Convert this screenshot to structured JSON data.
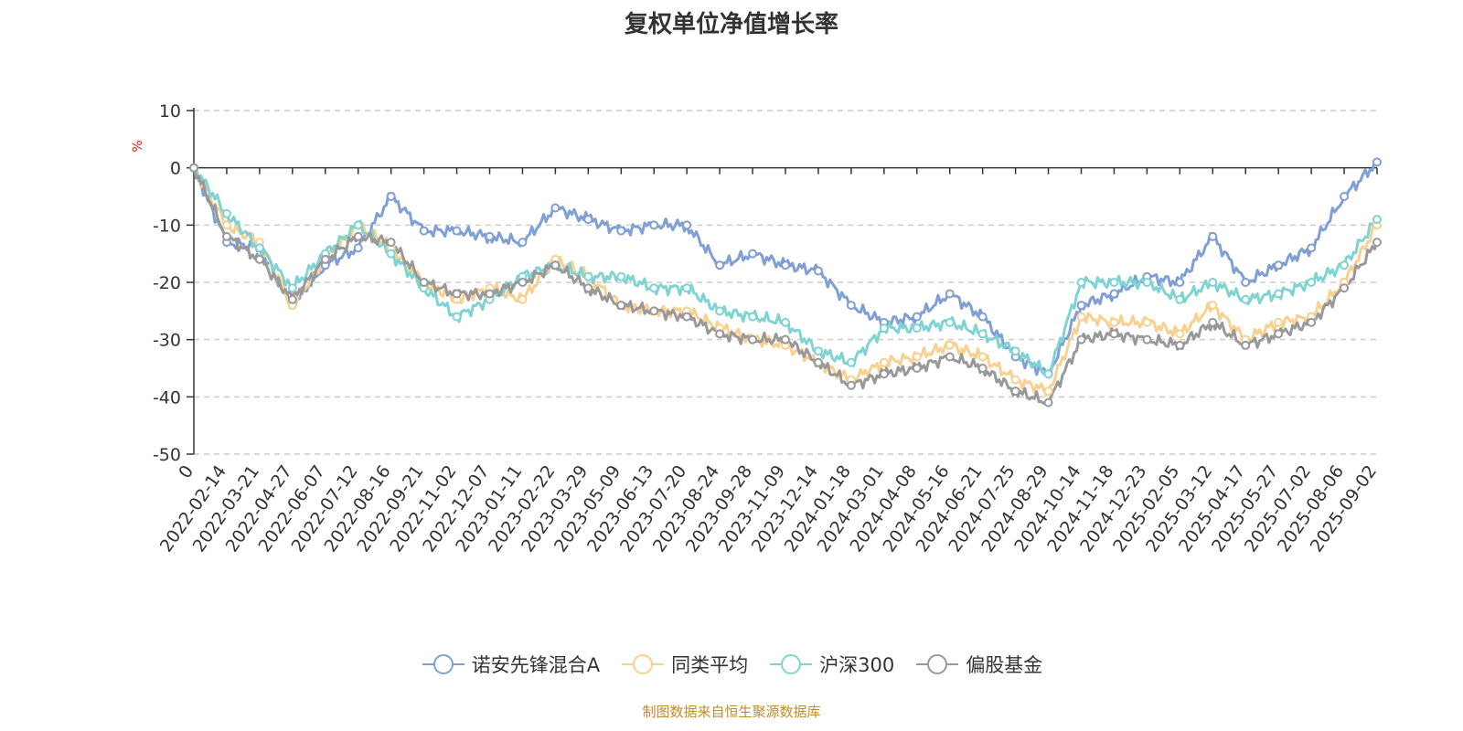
{
  "chart_data": {
    "type": "line",
    "title": "复权单位净值增长率",
    "ylabel": "%",
    "ylim": [
      -50,
      10
    ],
    "yticks": [
      10,
      0,
      -10,
      -20,
      -30,
      -40,
      -50
    ],
    "grid": true,
    "legend_position": "bottom",
    "x_tick_labels": [
      "0",
      "2022-02-14",
      "2022-03-21",
      "2022-04-27",
      "2022-06-07",
      "2022-07-12",
      "2022-08-16",
      "2022-09-21",
      "2022-11-02",
      "2022-12-07",
      "2023-01-11",
      "2023-02-22",
      "2023-03-29",
      "2023-05-09",
      "2023-06-13",
      "2023-07-20",
      "2023-08-24",
      "2023-09-28",
      "2023-11-09",
      "2023-12-14",
      "2024-01-18",
      "2024-03-01",
      "2024-04-08",
      "2024-05-16",
      "2024-06-21",
      "2024-07-25",
      "2024-08-29",
      "2024-10-14",
      "2024-11-18",
      "2024-12-23",
      "2025-02-05",
      "2025-03-12",
      "2025-04-17",
      "2025-05-27",
      "2025-07-02",
      "2025-08-06",
      "2025-09-02"
    ],
    "x": [
      "0",
      "2022-02-14",
      "2022-03-21",
      "2022-04-27",
      "2022-06-07",
      "2022-07-12",
      "2022-08-16",
      "2022-09-21",
      "2022-11-02",
      "2022-12-07",
      "2023-01-11",
      "2023-02-22",
      "2023-03-29",
      "2023-05-09",
      "2023-06-13",
      "2023-07-20",
      "2023-08-24",
      "2023-09-28",
      "2023-11-09",
      "2023-12-14",
      "2024-01-18",
      "2024-03-01",
      "2024-04-08",
      "2024-05-16",
      "2024-06-21",
      "2024-07-25",
      "2024-08-29",
      "2024-10-14",
      "2024-11-18",
      "2024-12-23",
      "2025-02-05",
      "2025-03-12",
      "2025-04-17",
      "2025-05-27",
      "2025-07-02",
      "2025-08-06",
      "2025-09-02"
    ],
    "series": [
      {
        "name": "诺安先锋混合A",
        "color": "#7f9fd5",
        "values": [
          0,
          -13,
          -14,
          -24,
          -17,
          -14,
          -5,
          -11,
          -11,
          -12,
          -13,
          -7,
          -9,
          -11,
          -10,
          -10,
          -17,
          -15,
          -17,
          -18,
          -24,
          -27,
          -26,
          -22,
          -26,
          -33,
          -36,
          -24,
          -22,
          -19,
          -20,
          -12,
          -20,
          -17,
          -14,
          -5,
          1
        ]
      },
      {
        "name": "同类平均",
        "color": "#f9d08f",
        "values": [
          0,
          -10,
          -13,
          -24,
          -16,
          -10,
          -14,
          -20,
          -23,
          -21,
          -23,
          -16,
          -19,
          -24,
          -25,
          -25,
          -28,
          -30,
          -31,
          -34,
          -37,
          -34,
          -33,
          -31,
          -33,
          -37,
          -39,
          -26,
          -27,
          -27,
          -29,
          -24,
          -30,
          -27,
          -26,
          -20,
          -10
        ]
      },
      {
        "name": "沪深300",
        "color": "#7fd3d3",
        "values": [
          0,
          -8,
          -14,
          -21,
          -15,
          -10,
          -15,
          -21,
          -26,
          -23,
          -19,
          -17,
          -19,
          -19,
          -21,
          -21,
          -25,
          -26,
          -27,
          -32,
          -34,
          -28,
          -28,
          -27,
          -29,
          -32,
          -36,
          -20,
          -20,
          -20,
          -23,
          -20,
          -23,
          -22,
          -20,
          -17,
          -9
        ]
      },
      {
        "name": "偏股基金",
        "color": "#999999",
        "values": [
          0,
          -12,
          -16,
          -23,
          -16,
          -12,
          -13,
          -20,
          -22,
          -22,
          -20,
          -17,
          -21,
          -24,
          -25,
          -26,
          -29,
          -30,
          -30,
          -34,
          -38,
          -36,
          -35,
          -33,
          -35,
          -39,
          -41,
          -30,
          -29,
          -30,
          -31,
          -27,
          -31,
          -29,
          -27,
          -21,
          -13
        ]
      }
    ]
  },
  "source_text": "制图数据来自恒生聚源数据库"
}
